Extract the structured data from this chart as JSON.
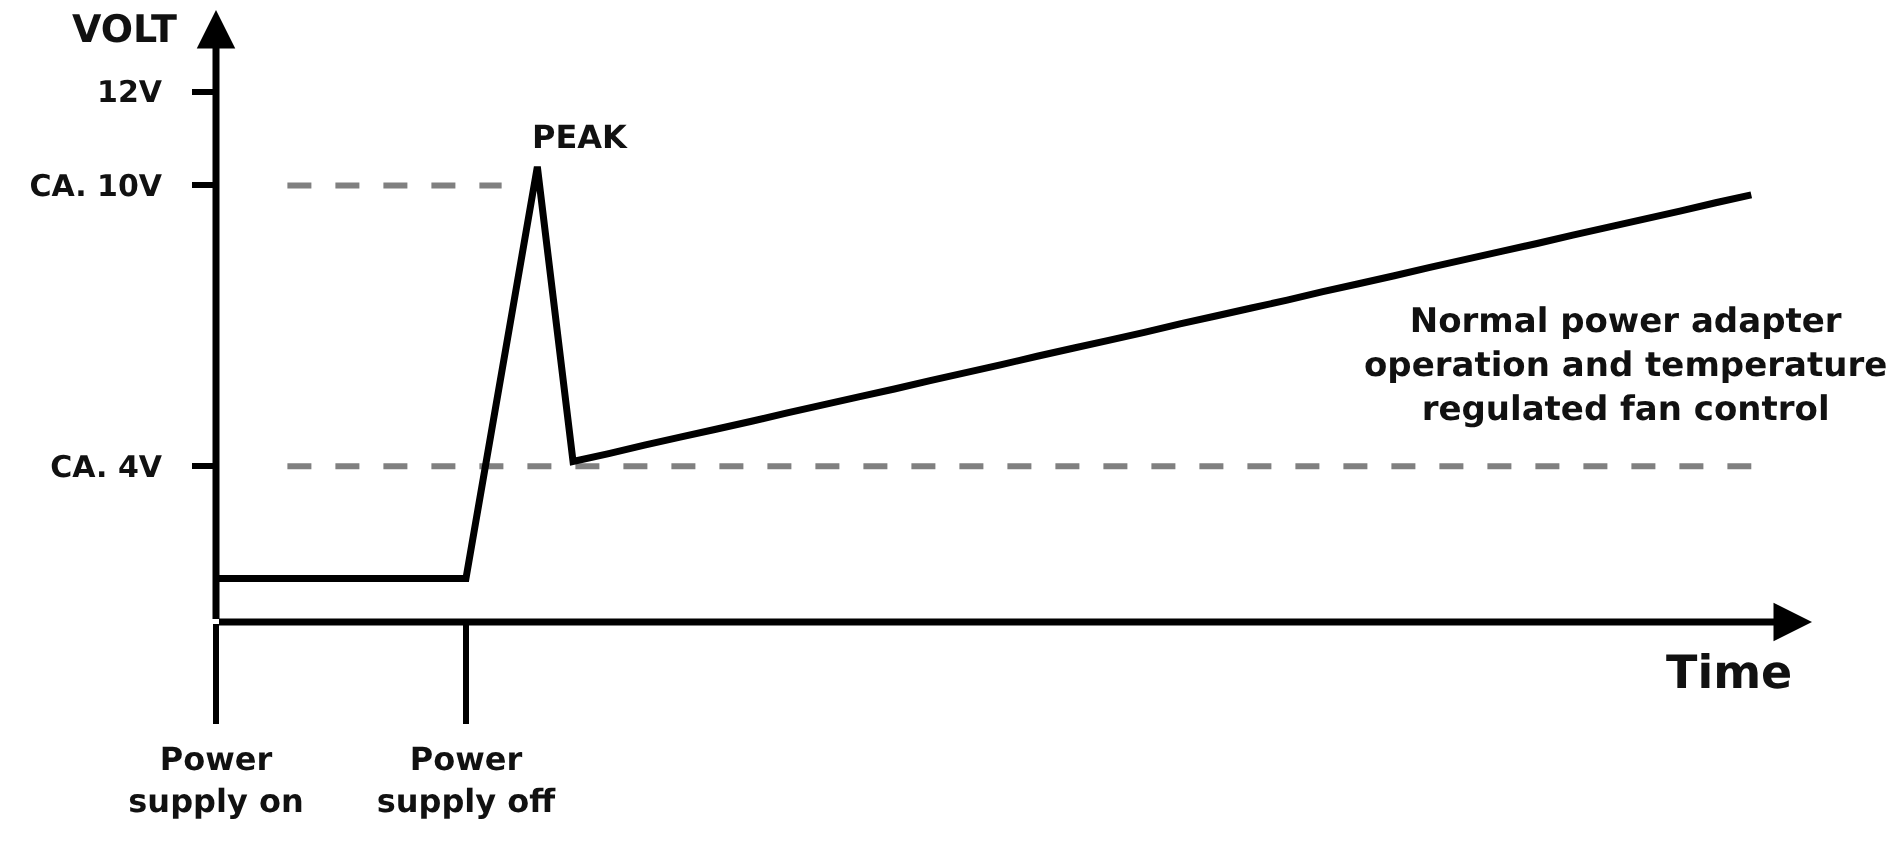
{
  "chart_data": {
    "type": "line",
    "ylabel": "VOLT",
    "xlabel": "Time",
    "categories": [
      "Power\nsupply on",
      null,
      null,
      null,
      null,
      null,
      null,
      "Power\nsupply off",
      null,
      null,
      null,
      null,
      null,
      null,
      null,
      null,
      null,
      null,
      null,
      null,
      null,
      null,
      null,
      null,
      null,
      null,
      null,
      null,
      null,
      null,
      null,
      null,
      null,
      null,
      null,
      null,
      null,
      null,
      null,
      null,
      null,
      null,
      null,
      null,
      null
    ],
    "ylim": [
      0.67,
      13.75
    ],
    "yticks": [
      {
        "value": 12,
        "label": "12V"
      },
      {
        "value": 10,
        "label": "CA. 10V"
      },
      {
        "value": 4,
        "label": "CA. 4V"
      }
    ],
    "series": [
      {
        "color": "#808080",
        "line_style": "dashed",
        "values": [
          null,
          null,
          10,
          10,
          10,
          10,
          10,
          10,
          10,
          null,
          null,
          null,
          null,
          null,
          null,
          null,
          null,
          null,
          null,
          null,
          null,
          null,
          null,
          null,
          null,
          null,
          null,
          null,
          null,
          null,
          null,
          null,
          null,
          null,
          null,
          null,
          null,
          null,
          null,
          null,
          null,
          null,
          null,
          null,
          null
        ]
      },
      {
        "color": "#808080",
        "line_style": "dashed",
        "values": [
          null,
          null,
          4,
          4,
          4,
          4,
          4,
          4,
          4,
          4,
          4,
          4,
          4,
          4,
          4,
          4,
          4,
          4,
          4,
          4,
          4,
          4,
          4,
          4,
          4,
          4,
          4,
          4,
          4,
          4,
          4,
          4,
          4,
          4,
          4,
          4,
          4,
          4,
          4,
          4,
          4,
          4,
          4,
          4,
          null
        ]
      },
      {
        "color": "#000000",
        "values": [
          1.6,
          1.6,
          1.6,
          1.6,
          1.6,
          1.6,
          1.6,
          1.6,
          6.0,
          10.4,
          4.1,
          4.27,
          4.45,
          4.62,
          4.79,
          4.96,
          5.14,
          5.31,
          5.48,
          5.65,
          5.83,
          6.0,
          6.17,
          6.35,
          6.52,
          6.69,
          6.86,
          7.04,
          7.21,
          7.38,
          7.55,
          7.73,
          7.9,
          8.07,
          8.25,
          8.42,
          8.59,
          8.76,
          8.94,
          9.11,
          9.28,
          9.45,
          9.63,
          9.8,
          null
        ]
      }
    ],
    "annotations": [
      "PEAK",
      "Normal power adapter\noperation and temperature\nregulated fan control"
    ],
    "marker": "none",
    "line_style": "solid"
  }
}
